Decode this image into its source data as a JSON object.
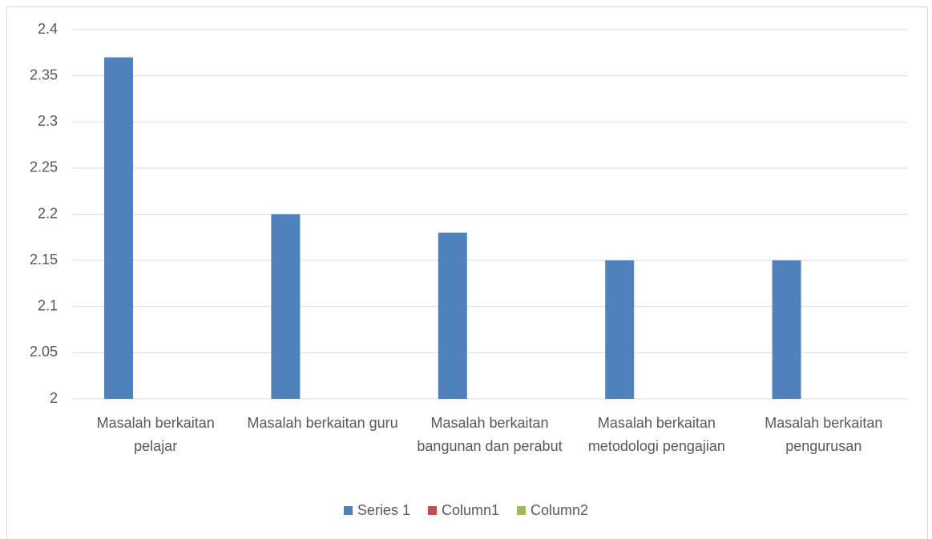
{
  "chart_data": {
    "type": "bar",
    "categories": [
      "Masalah berkaitan pelajar",
      "Masalah berkaitan guru",
      "Masalah berkaitan bangunan dan perabut",
      "Masalah berkaitan metodologi pengajian",
      "Masalah berkaitan pengurusan"
    ],
    "series": [
      {
        "name": "Series 1",
        "color": "#4f81bd",
        "values": [
          2.37,
          2.2,
          2.18,
          2.15,
          2.15
        ]
      },
      {
        "name": "Column1",
        "color": "#c0504d",
        "values": [
          null,
          null,
          null,
          null,
          null
        ]
      },
      {
        "name": "Column2",
        "color": "#9bbb59",
        "values": [
          null,
          null,
          null,
          null,
          null
        ]
      }
    ],
    "ylim": [
      2,
      2.4
    ],
    "yticks": [
      2,
      2.05,
      2.1,
      2.15,
      2.2,
      2.25,
      2.3,
      2.35,
      2.4
    ],
    "grid": true,
    "legend": "bottom"
  }
}
